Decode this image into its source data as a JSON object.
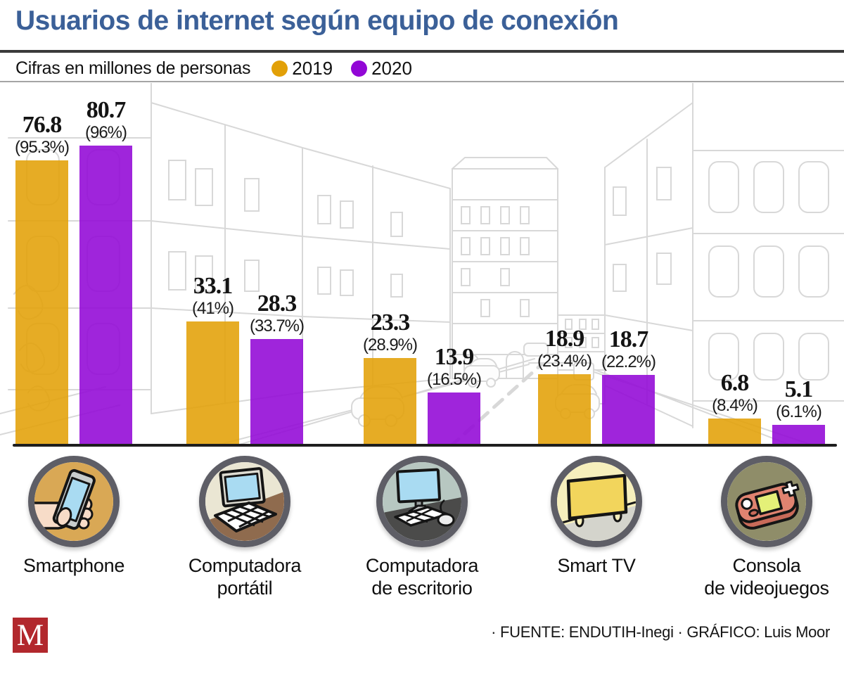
{
  "header": {
    "title": "Usuarios de internet según equipo de conexión",
    "title_color": "#3B6098",
    "units_label": "Cifras en millones de personas"
  },
  "chart_data": {
    "type": "bar",
    "title": "Usuarios de internet según equipo de conexión",
    "subtitle": "Cifras en millones de personas",
    "categories": [
      "Smartphone",
      "Computadora portátil",
      "Computadora de escritorio",
      "Smart TV",
      "Consola de videojuegos"
    ],
    "series": [
      {
        "name": "2019",
        "color": "#E2A007",
        "values": [
          76.8,
          33.1,
          23.3,
          18.9,
          6.8
        ],
        "percent_labels": [
          "(95.3%)",
          "(41%)",
          "(28.9%)",
          "(23.4%)",
          "(8.4%)"
        ]
      },
      {
        "name": "2020",
        "color": "#9207D6",
        "values": [
          80.7,
          28.3,
          13.9,
          18.7,
          5.1
        ],
        "percent_labels": [
          "(96%)",
          "(33.7%)",
          "(16.5%)",
          "(22.2%)",
          "(6.1%)"
        ]
      }
    ],
    "ylabel": "millones de personas",
    "ylim": [
      0,
      98
    ],
    "grid": false,
    "legend_position": "top"
  },
  "category_lines": [
    [
      "Smartphone"
    ],
    [
      "Computadora",
      "portátil"
    ],
    [
      "Computadora",
      "de escritorio"
    ],
    [
      "Smart TV"
    ],
    [
      "Consola",
      "de videojuegos"
    ]
  ],
  "icons": [
    "hand-holding-smartphone",
    "laptop-computer",
    "desktop-computer",
    "smart-tv",
    "handheld-game-console"
  ],
  "footer": {
    "logo_letter": "M",
    "logo_color": "#B2282D",
    "credits": "· FUENTE: ENDUTIH-Inegi · GRÁFICO: Luis Moor"
  }
}
